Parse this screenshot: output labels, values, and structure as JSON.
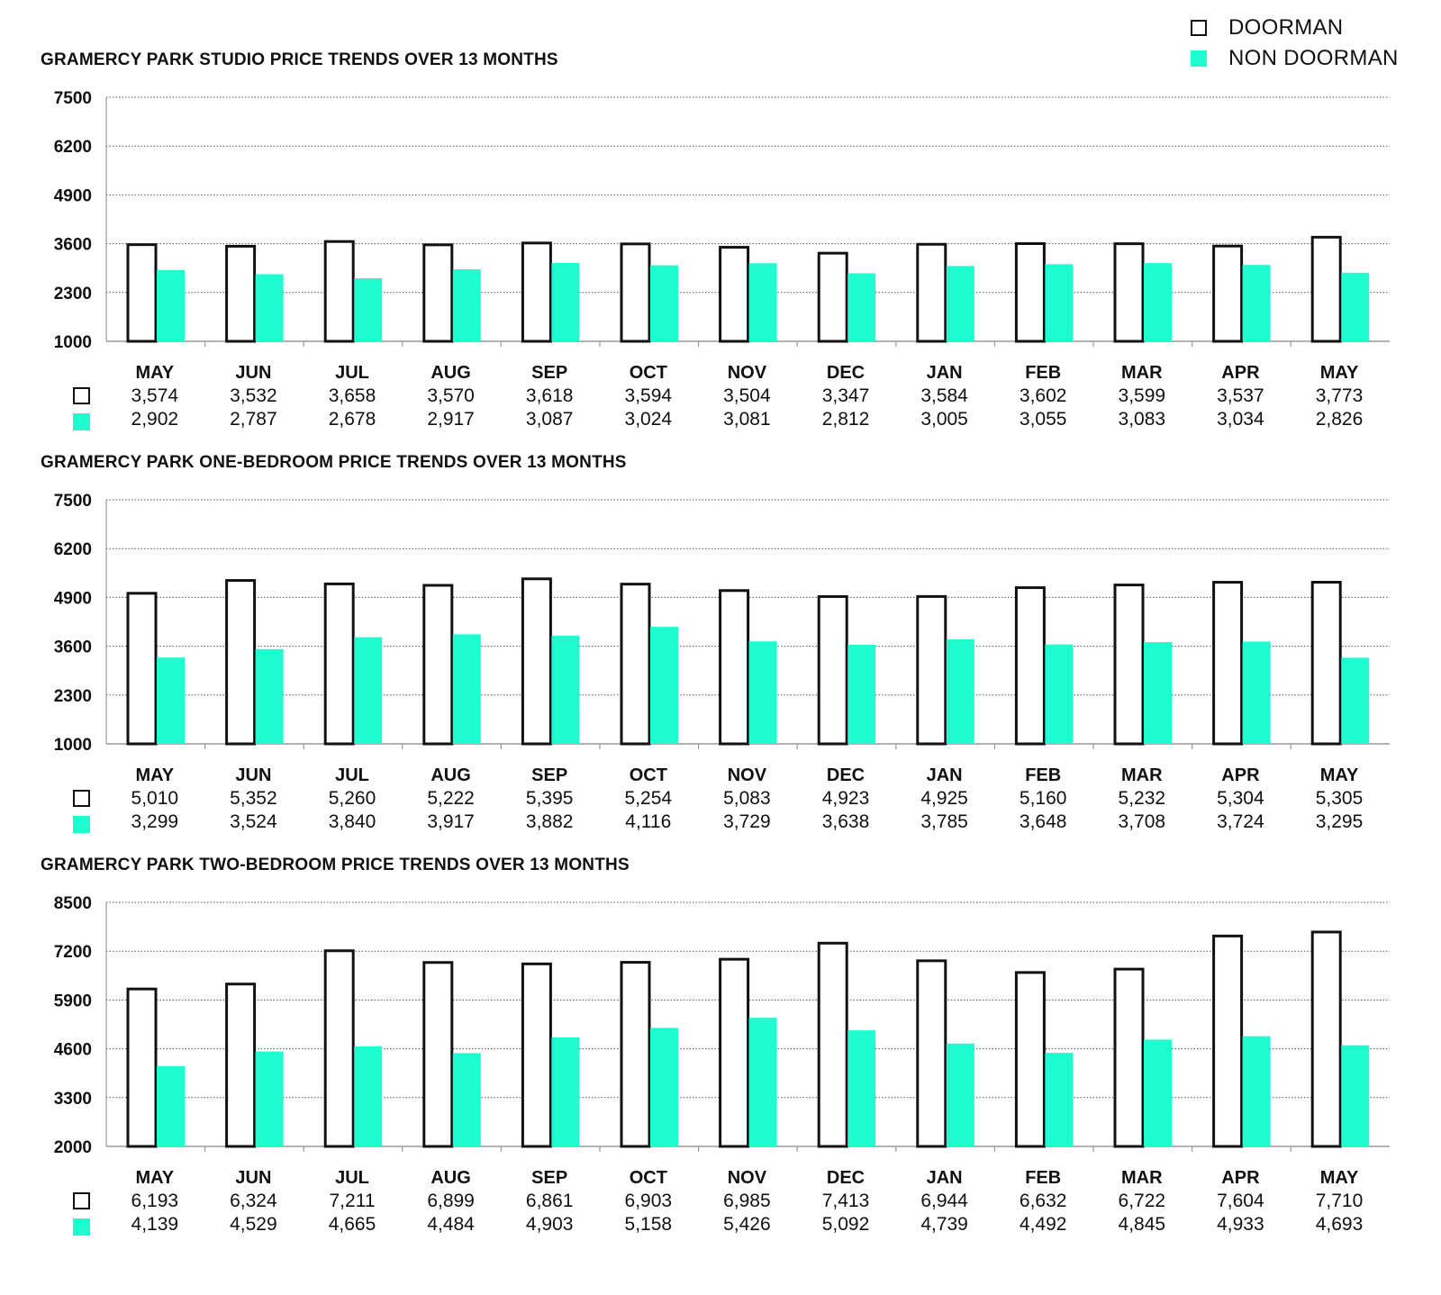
{
  "legend": {
    "doorman_label": "DOORMAN",
    "non_doorman_label": "NON DOORMAN"
  },
  "colors": {
    "doorman_fill": "#ffffff",
    "doorman_stroke": "#111111",
    "non_doorman_fill": "#1ffccf",
    "grid": "#555555",
    "axis": "#999999"
  },
  "chart_data": [
    {
      "type": "bar",
      "title": "GRAMERCY PARK STUDIO PRICE TRENDS OVER 13 MONTHS",
      "categories": [
        "MAY",
        "JUN",
        "JUL",
        "AUG",
        "SEP",
        "OCT",
        "NOV",
        "DEC",
        "JAN",
        "FEB",
        "MAR",
        "APR",
        "MAY"
      ],
      "ylim": [
        1000,
        7500
      ],
      "yticks": [
        "7500",
        "6200",
        "4900",
        "3600",
        "2300",
        "1000"
      ],
      "grid": true,
      "series": [
        {
          "name": "DOORMAN",
          "values": [
            3574,
            3532,
            3658,
            3570,
            3618,
            3594,
            3504,
            3347,
            3584,
            3602,
            3599,
            3537,
            3773
          ],
          "labels": [
            "3,574",
            "3,532",
            "3,658",
            "3,570",
            "3,618",
            "3,594",
            "3,504",
            "3,347",
            "3,584",
            "3,602",
            "3,599",
            "3,537",
            "3,773"
          ]
        },
        {
          "name": "NON DOORMAN",
          "values": [
            2902,
            2787,
            2678,
            2917,
            3087,
            3024,
            3081,
            2812,
            3005,
            3055,
            3083,
            3034,
            2826
          ],
          "labels": [
            "2,902",
            "2,787",
            "2,678",
            "2,917",
            "3,087",
            "3,024",
            "3,081",
            "2,812",
            "3,005",
            "3,055",
            "3,083",
            "3,034",
            "2,826"
          ]
        }
      ]
    },
    {
      "type": "bar",
      "title": "GRAMERCY PARK ONE-BEDROOM PRICE TRENDS OVER 13 MONTHS",
      "categories": [
        "MAY",
        "JUN",
        "JUL",
        "AUG",
        "SEP",
        "OCT",
        "NOV",
        "DEC",
        "JAN",
        "FEB",
        "MAR",
        "APR",
        "MAY"
      ],
      "ylim": [
        1000,
        7500
      ],
      "yticks": [
        "7500",
        "6200",
        "4900",
        "3600",
        "2300",
        "1000"
      ],
      "grid": true,
      "series": [
        {
          "name": "DOORMAN",
          "values": [
            5010,
            5352,
            5260,
            5222,
            5395,
            5254,
            5083,
            4923,
            4925,
            5160,
            5232,
            5304,
            5305
          ],
          "labels": [
            "5,010",
            "5,352",
            "5,260",
            "5,222",
            "5,395",
            "5,254",
            "5,083",
            "4,923",
            "4,925",
            "5,160",
            "5,232",
            "5,304",
            "5,305"
          ]
        },
        {
          "name": "NON DOORMAN",
          "values": [
            3299,
            3524,
            3840,
            3917,
            3882,
            4116,
            3729,
            3638,
            3785,
            3648,
            3708,
            3724,
            3295
          ],
          "labels": [
            "3,299",
            "3,524",
            "3,840",
            "3,917",
            "3,882",
            "4,116",
            "3,729",
            "3,638",
            "3,785",
            "3,648",
            "3,708",
            "3,724",
            "3,295"
          ]
        }
      ]
    },
    {
      "type": "bar",
      "title": "GRAMERCY PARK TWO-BEDROOM PRICE TRENDS OVER 13 MONTHS",
      "categories": [
        "MAY",
        "JUN",
        "JUL",
        "AUG",
        "SEP",
        "OCT",
        "NOV",
        "DEC",
        "JAN",
        "FEB",
        "MAR",
        "APR",
        "MAY"
      ],
      "ylim": [
        2000,
        8500
      ],
      "yticks": [
        "8500",
        "7200",
        "5900",
        "4600",
        "3300",
        "2000"
      ],
      "grid": true,
      "series": [
        {
          "name": "DOORMAN",
          "values": [
            6193,
            6324,
            7211,
            6899,
            6861,
            6903,
            6985,
            7413,
            6944,
            6632,
            6722,
            7604,
            7710
          ],
          "labels": [
            "6,193",
            "6,324",
            "7,211",
            "6,899",
            "6,861",
            "6,903",
            "6,985",
            "7,413",
            "6,944",
            "6,632",
            "6,722",
            "7,604",
            "7,710"
          ]
        },
        {
          "name": "NON DOORMAN",
          "values": [
            4139,
            4529,
            4665,
            4484,
            4903,
            5158,
            5426,
            5092,
            4739,
            4492,
            4845,
            4933,
            4693
          ],
          "labels": [
            "4,139",
            "4,529",
            "4,665",
            "4,484",
            "4,903",
            "5,158",
            "5,426",
            "5,092",
            "4,739",
            "4,492",
            "4,845",
            "4,933",
            "4,693"
          ]
        }
      ]
    }
  ]
}
